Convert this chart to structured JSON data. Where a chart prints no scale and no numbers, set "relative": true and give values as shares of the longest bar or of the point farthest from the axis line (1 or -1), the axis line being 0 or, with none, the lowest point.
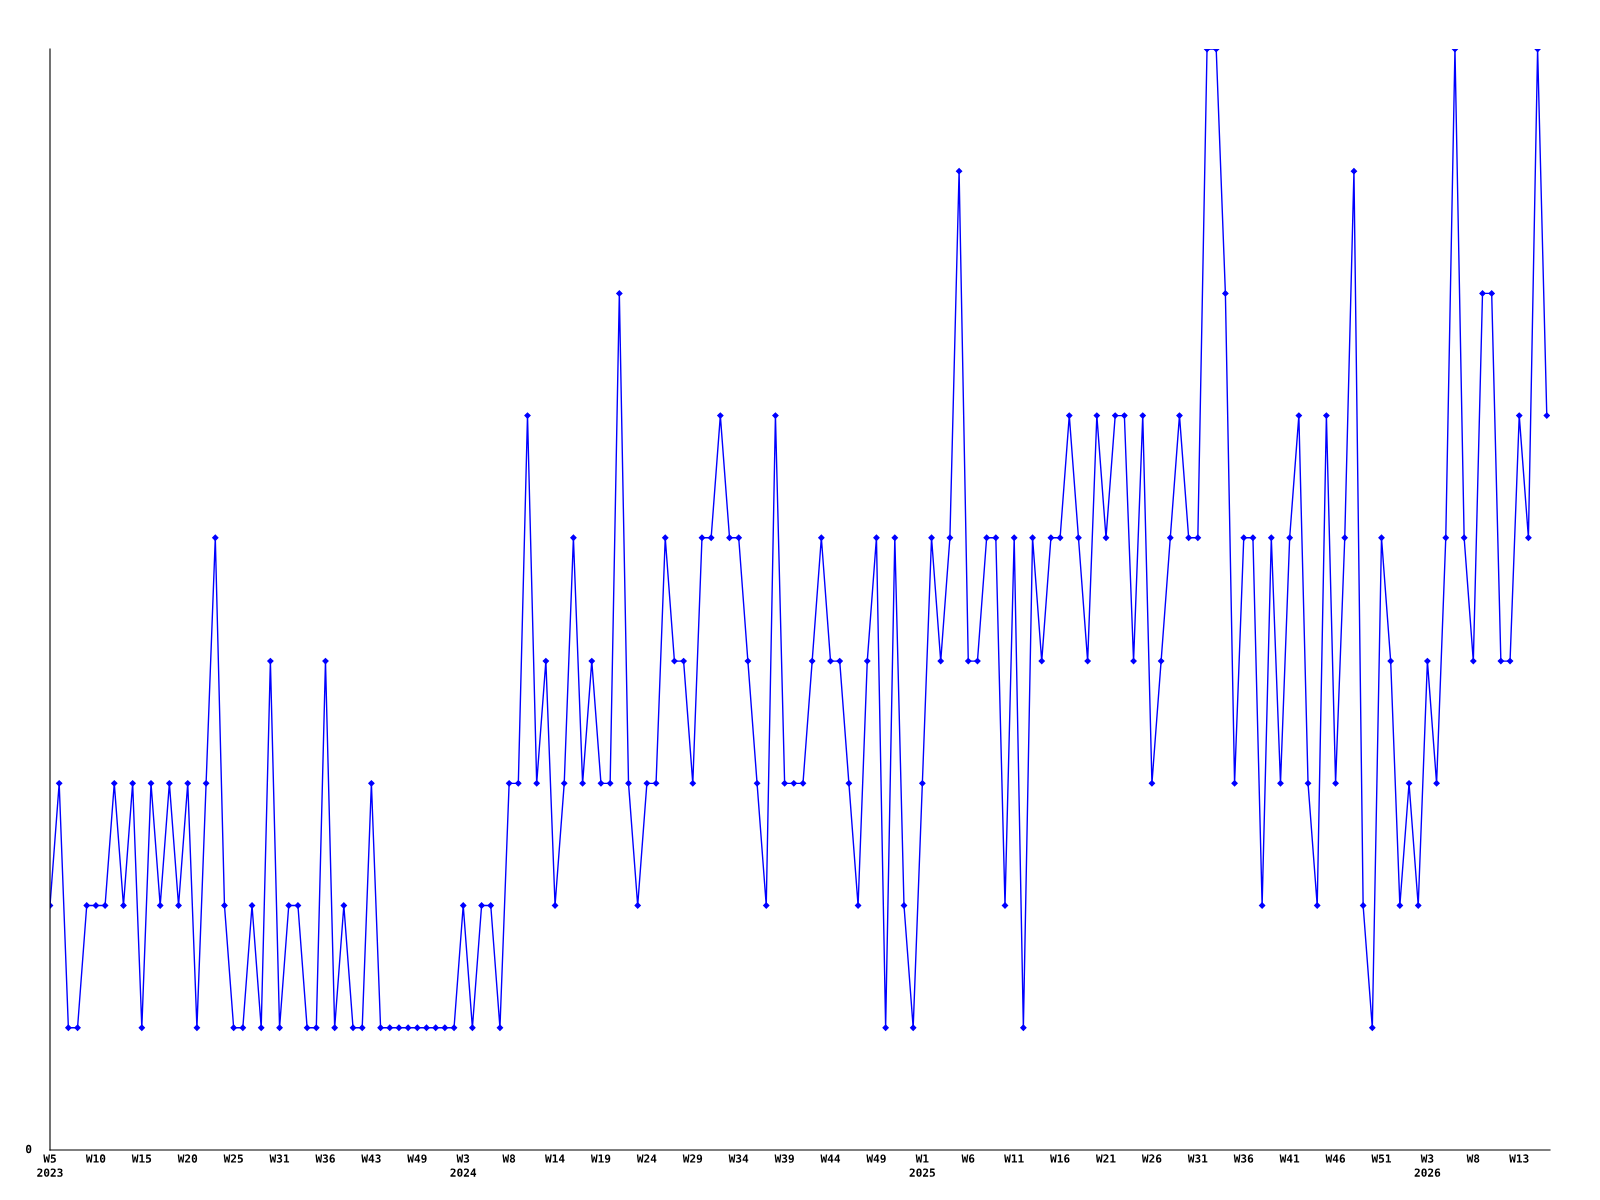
{
  "chart_data": {
    "type": "line",
    "relative": true,
    "annotations": [
      "0"
    ],
    "color": "#0000ff",
    "marker": "diamond",
    "line_style": "solid",
    "grid": false,
    "legend": false,
    "categories": [
      "W5\n2023",
      null,
      null,
      null,
      null,
      "W10",
      null,
      null,
      null,
      null,
      "W15",
      null,
      null,
      null,
      null,
      "W20",
      null,
      null,
      null,
      null,
      "W25",
      null,
      null,
      null,
      null,
      "W31",
      null,
      null,
      null,
      null,
      "W36",
      null,
      null,
      null,
      null,
      "W43",
      null,
      null,
      null,
      null,
      "W49",
      null,
      null,
      null,
      null,
      "W3\n2024",
      null,
      null,
      null,
      null,
      "W8",
      null,
      null,
      null,
      null,
      "W14",
      null,
      null,
      null,
      null,
      "W19",
      null,
      null,
      null,
      null,
      "W24",
      null,
      null,
      null,
      null,
      "W29",
      null,
      null,
      null,
      null,
      "W34",
      null,
      null,
      null,
      null,
      "W39",
      null,
      null,
      null,
      null,
      "W44",
      null,
      null,
      null,
      null,
      "W49",
      null,
      null,
      null,
      null,
      "W1\n2025",
      null,
      null,
      null,
      null,
      "W6",
      null,
      null,
      null,
      null,
      "W11",
      null,
      null,
      null,
      null,
      "W16",
      null,
      null,
      null,
      null,
      "W21",
      null,
      null,
      null,
      null,
      "W26",
      null,
      null,
      null,
      null,
      "W31",
      null,
      null,
      null,
      null,
      "W36",
      null,
      null,
      null,
      null,
      "W41",
      null,
      null,
      null,
      null,
      "W46",
      null,
      null,
      null,
      null,
      "W51",
      null,
      null,
      null,
      null,
      "W3\n2026",
      null,
      null,
      null,
      null,
      "W8",
      null,
      null,
      null,
      null,
      "W13",
      null,
      null,
      null
    ],
    "values": [
      0.222,
      0.333,
      0.111,
      0.111,
      0.222,
      0.222,
      0.222,
      0.333,
      0.222,
      0.333,
      0.111,
      0.333,
      0.222,
      0.333,
      0.222,
      0.333,
      0.111,
      0.333,
      0.556,
      0.222,
      0.111,
      0.111,
      0.222,
      0.111,
      0.444,
      0.111,
      0.222,
      0.222,
      0.111,
      0.111,
      0.444,
      0.111,
      0.222,
      0.111,
      0.111,
      0.333,
      0.111,
      0.111,
      0.111,
      0.111,
      0.111,
      0.111,
      0.111,
      0.111,
      0.111,
      0.222,
      0.111,
      0.222,
      0.222,
      0.111,
      0.333,
      0.333,
      0.667,
      0.333,
      0.444,
      0.222,
      0.333,
      0.556,
      0.333,
      0.444,
      0.333,
      0.333,
      0.778,
      0.333,
      0.222,
      0.333,
      0.333,
      0.556,
      0.444,
      0.444,
      0.333,
      0.556,
      0.556,
      0.667,
      0.556,
      0.556,
      0.444,
      0.333,
      0.222,
      0.667,
      0.333,
      0.333,
      0.333,
      0.444,
      0.556,
      0.444,
      0.444,
      0.333,
      0.222,
      0.444,
      0.556,
      0.111,
      0.556,
      0.222,
      0.111,
      0.333,
      0.556,
      0.444,
      0.556,
      0.889,
      0.444,
      0.444,
      0.556,
      0.556,
      0.222,
      0.556,
      0.111,
      0.556,
      0.444,
      0.556,
      0.556,
      0.667,
      0.556,
      0.444,
      0.667,
      0.556,
      0.667,
      0.667,
      0.444,
      0.667,
      0.333,
      0.444,
      0.556,
      0.667,
      0.556,
      0.556,
      1,
      1,
      0.778,
      0.333,
      0.556,
      0.556,
      0.222,
      0.556,
      0.333,
      0.556,
      0.667,
      0.333,
      0.222,
      0.667,
      0.333,
      0.556,
      0.889,
      0.222,
      0.111,
      0.556,
      0.444,
      0.222,
      0.333,
      0.222,
      0.444,
      0.333,
      0.556,
      1,
      0.556,
      0.444,
      0.778,
      0.778,
      0.444,
      0.444,
      0.667,
      0.556,
      1,
      0.667
    ]
  }
}
